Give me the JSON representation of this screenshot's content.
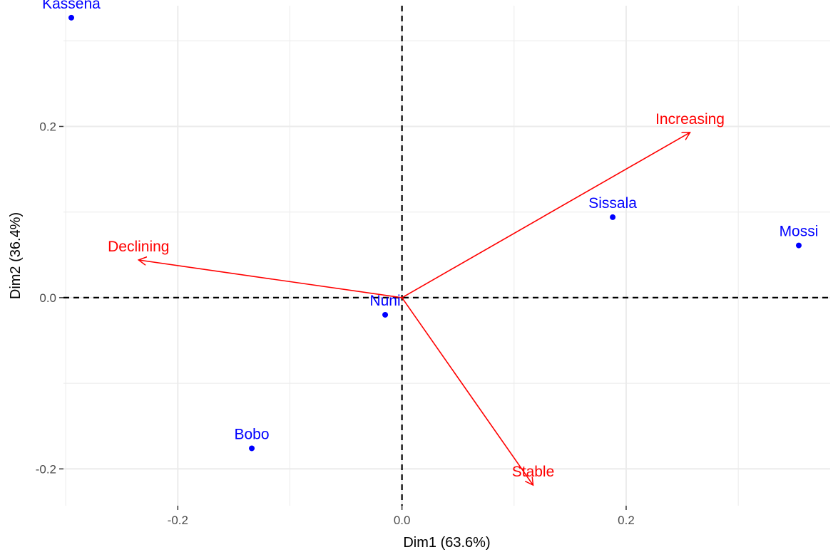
{
  "chart_data": {
    "type": "scatter",
    "subtype": "correspondence-analysis-biplot",
    "xlabel": "Dim1 (63.6%)",
    "ylabel": "Dim2 (36.4%)",
    "xlim": [
      -0.302,
      0.382
    ],
    "ylim": [
      -0.243,
      0.341
    ],
    "x_ticks": [
      -0.2,
      0.0,
      0.2
    ],
    "y_ticks": [
      -0.2,
      0.0,
      0.2
    ],
    "x_tick_labels": [
      "-0.2",
      "0.0",
      "0.2"
    ],
    "y_tick_labels": [
      "-0.2",
      "0.0",
      "0.2"
    ],
    "grid": true,
    "reference_lines": {
      "x": 0,
      "y": 0,
      "style": "dashed"
    },
    "points": [
      {
        "label": "Kassena",
        "x": -0.295,
        "y": 0.327
      },
      {
        "label": "Sissala",
        "x": 0.188,
        "y": 0.094
      },
      {
        "label": "Mossi",
        "x": 0.354,
        "y": 0.061
      },
      {
        "label": "Nuni",
        "x": -0.015,
        "y": -0.02
      },
      {
        "label": "Bobo",
        "x": -0.134,
        "y": -0.176
      }
    ],
    "arrows": [
      {
        "label": "Increasing",
        "x": 0.257,
        "y": 0.193
      },
      {
        "label": "Declining",
        "x": -0.235,
        "y": 0.044
      },
      {
        "label": "Stable",
        "x": 0.117,
        "y": -0.219
      }
    ],
    "colors": {
      "points": "#0000ff",
      "arrows": "#ff0000",
      "grid": "#ebebeb",
      "reference": "#000000"
    }
  }
}
